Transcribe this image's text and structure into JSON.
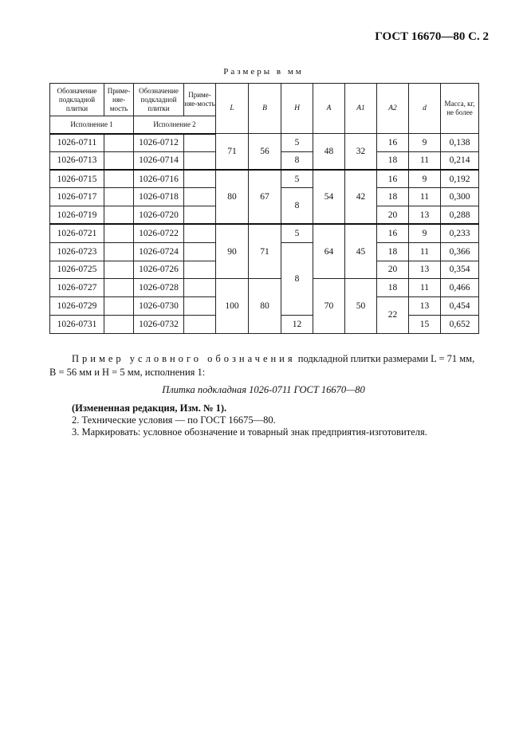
{
  "header": "ГОСТ 16670—80 С. 2",
  "caption": "Размеры в мм",
  "table": {
    "headers": [
      "Обозначение подкладной плитки",
      "Приме-няе-мость",
      "Обозначение подкладной плитки",
      "Приме-няе-мость",
      "L",
      "B",
      "H",
      "A",
      "A1",
      "A2",
      "d",
      "Масса, кг, не более"
    ],
    "subheaders": [
      "Исполнение 1",
      "Исполнение 2"
    ],
    "rows": [
      [
        "1026-0711",
        "",
        "1026-0712",
        "",
        "71",
        "56",
        "5",
        "48",
        "32",
        "16",
        "9",
        "0,138"
      ],
      [
        "1026-0713",
        "",
        "1026-0714",
        "",
        null,
        null,
        "8",
        null,
        null,
        "18",
        "11",
        "0,214"
      ],
      [
        "1026-0715",
        "",
        "1026-0716",
        "",
        "80",
        "67",
        "5",
        "54",
        "42",
        "16",
        "9",
        "0,192"
      ],
      [
        "1026-0717",
        "",
        "1026-0718",
        "",
        null,
        null,
        "8",
        null,
        null,
        "18",
        "11",
        "0,300"
      ],
      [
        "1026-0719",
        "",
        "1026-0720",
        "",
        null,
        null,
        null,
        null,
        null,
        "20",
        "13",
        "0,288"
      ],
      [
        "1026-0721",
        "",
        "1026-0722",
        "",
        "90",
        "71",
        "5",
        "64",
        "45",
        "16",
        "9",
        "0,233"
      ],
      [
        "1026-0723",
        "",
        "1026-0724",
        "",
        null,
        null,
        "8",
        null,
        null,
        "18",
        "11",
        "0,366"
      ],
      [
        "1026-0725",
        "",
        "1026-0726",
        "",
        null,
        null,
        null,
        null,
        null,
        "20",
        "13",
        "0,354"
      ],
      [
        "1026-0727",
        "",
        "1026-0728",
        "",
        "100",
        "80",
        null,
        "70",
        "50",
        "18",
        "11",
        "0,466"
      ],
      [
        "1026-0729",
        "",
        "1026-0730",
        "",
        null,
        null,
        null,
        null,
        null,
        "22",
        "13",
        "0,454"
      ],
      [
        "1026-0731",
        "",
        "1026-0732",
        "",
        null,
        null,
        "12",
        null,
        null,
        null,
        "15",
        "0,652"
      ]
    ]
  },
  "example": {
    "lead": "Пример условного обозначения",
    "text1": " подкладной плитки размерами L = 71 мм,",
    "text2": "B = 56 мм и H = 5 мм, исполнения 1:",
    "designation": "Плитка подкладная 1026-0711 ГОСТ 16670—80"
  },
  "notes": {
    "amendment": "(Измененная редакция, Изм. № 1).",
    "item2": "2. Технические условия — по ГОСТ 16675—80.",
    "item3": "3. Маркировать: условное обозначение и товарный знак предприятия-изготовителя."
  }
}
